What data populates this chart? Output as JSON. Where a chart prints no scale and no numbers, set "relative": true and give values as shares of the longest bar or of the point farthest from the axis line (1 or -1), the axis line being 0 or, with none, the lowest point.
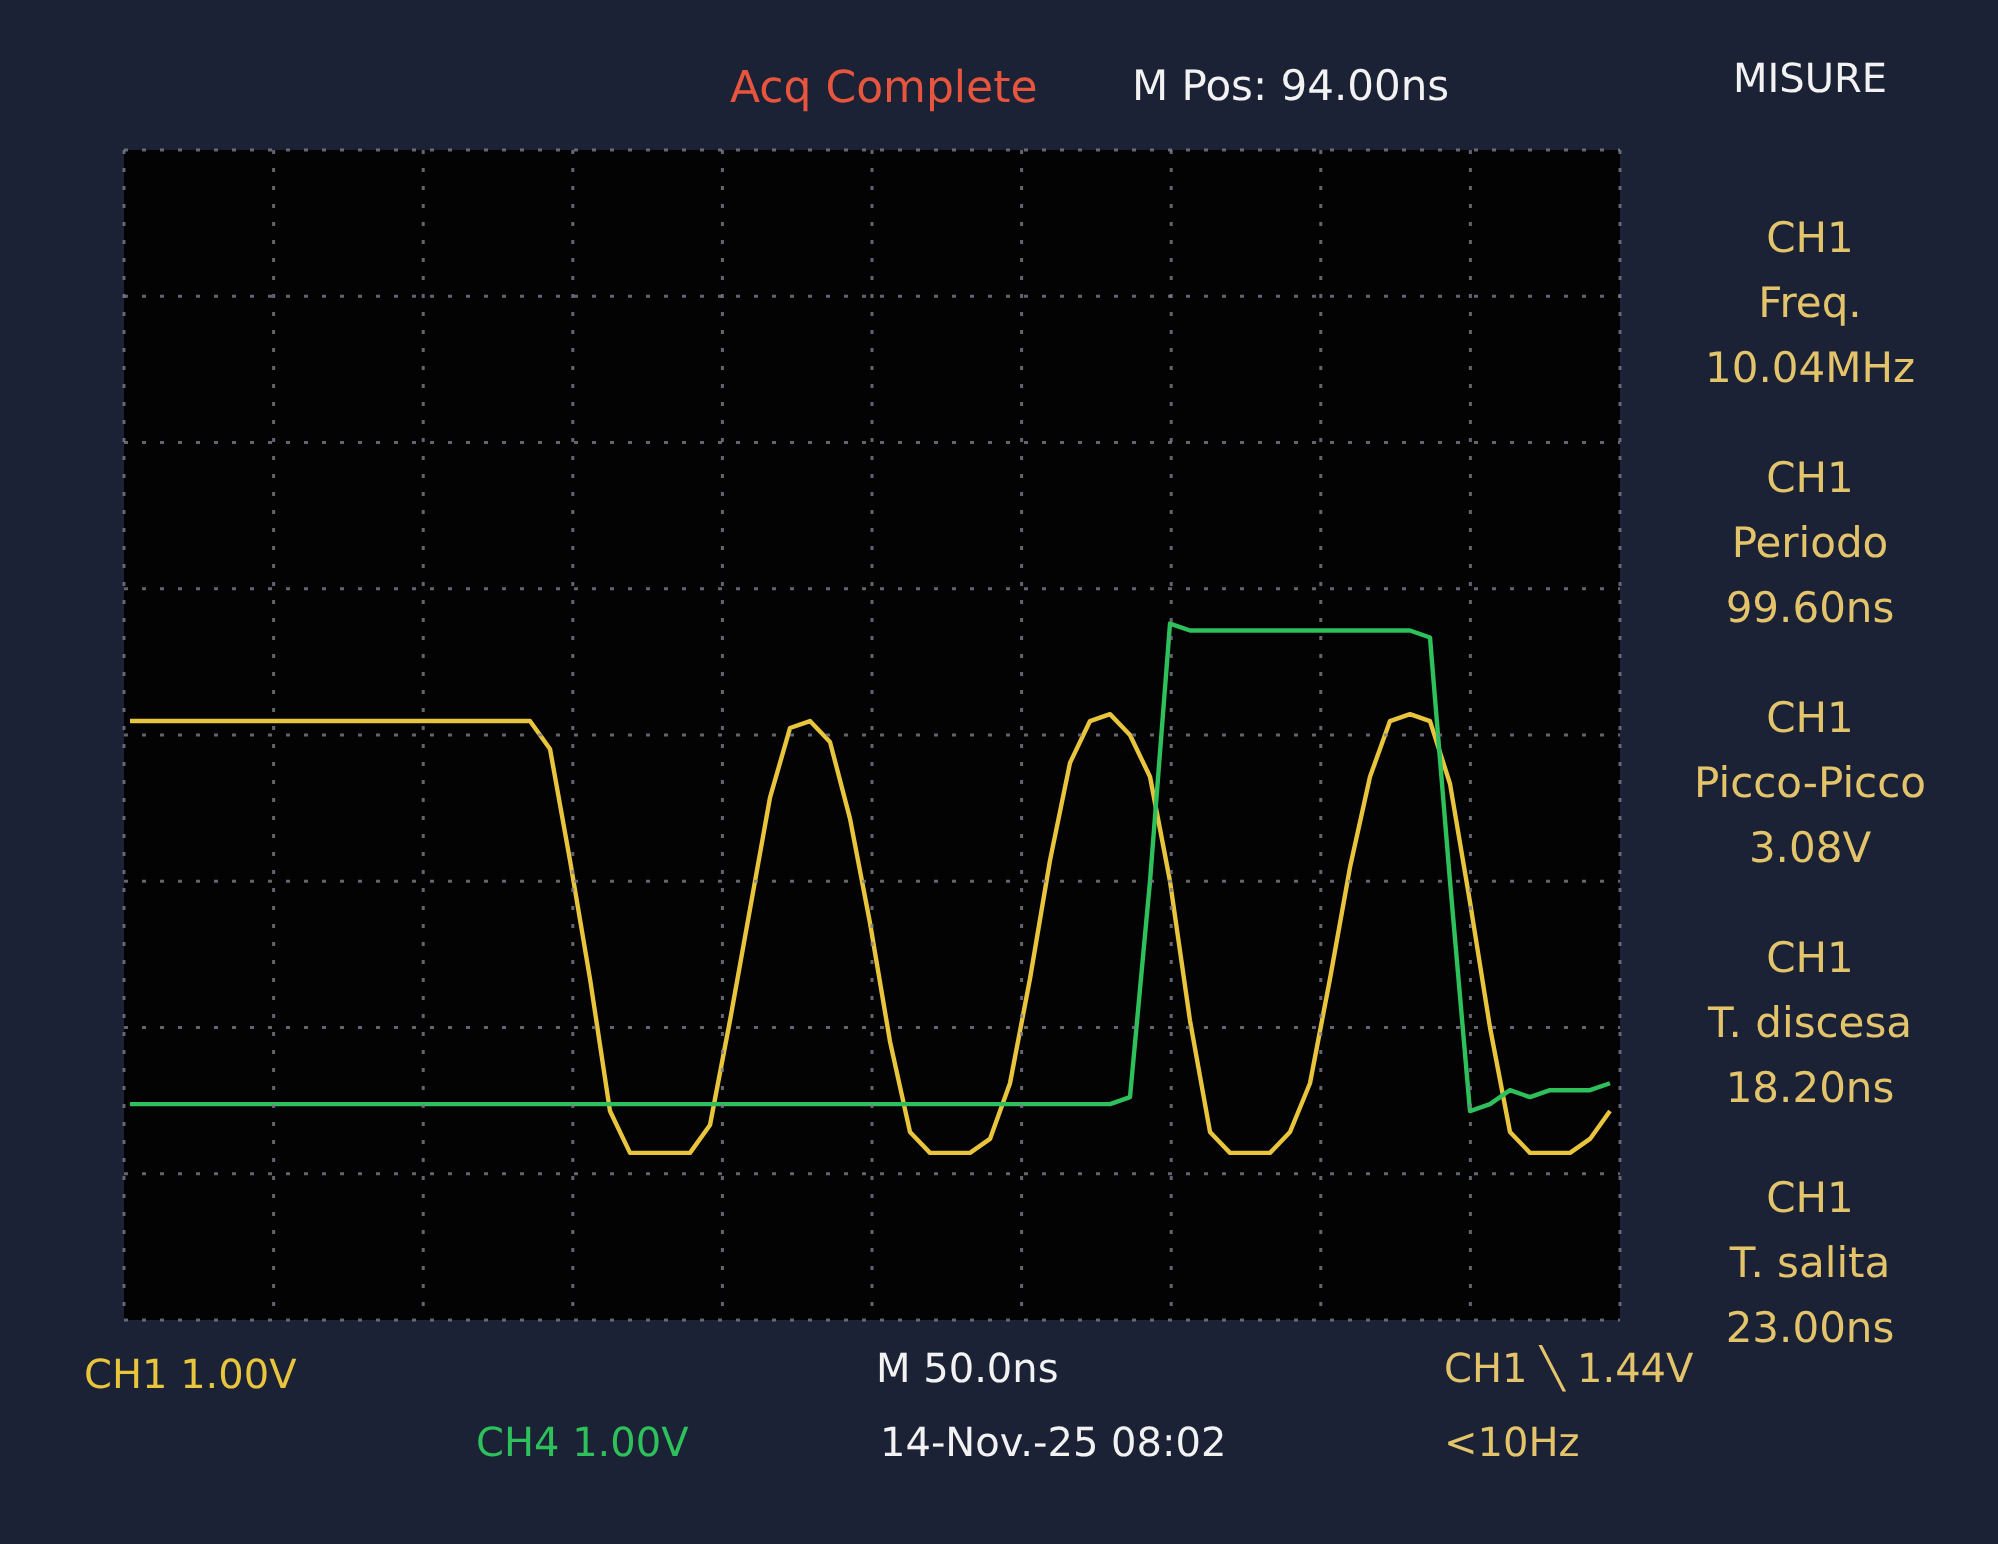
{
  "chart_data": {
    "type": "line",
    "relative": true,
    "grid": true,
    "legend": false,
    "marker": "none",
    "line_style": "solid",
    "title": "Acq Complete",
    "subtitle": "M Pos: 94.00ns",
    "xlabel": "M 50.0ns",
    "categories": [
      null,
      null,
      null,
      null,
      null,
      null,
      null,
      null,
      null,
      null,
      null,
      null,
      null,
      null,
      null,
      null,
      null,
      null,
      null,
      null,
      null,
      null,
      null,
      null,
      null,
      null,
      null,
      null,
      null,
      null,
      null,
      null,
      null,
      null,
      null,
      null,
      null,
      null,
      null,
      null,
      null,
      null,
      null,
      null,
      null,
      null,
      null,
      null,
      null,
      null,
      null,
      null,
      null,
      null,
      null,
      null,
      null,
      null,
      null,
      null,
      null,
      null,
      null,
      null,
      null,
      null,
      null,
      null,
      null,
      null,
      null,
      null,
      null,
      null,
      null
    ],
    "series": [
      {
        "name": "CH1 1.00V",
        "color": "#e8c53c",
        "values": [
          0.86,
          0.86,
          0.86,
          0.86,
          0.86,
          0.86,
          0.86,
          0.86,
          0.86,
          0.86,
          0.86,
          0.86,
          0.86,
          0.86,
          0.86,
          0.86,
          0.86,
          0.86,
          0.86,
          0.86,
          0.86,
          0.82,
          0.66,
          0.49,
          0.3,
          0.24,
          0.24,
          0.24,
          0.24,
          0.28,
          0.43,
          0.59,
          0.75,
          0.85,
          0.86,
          0.83,
          0.72,
          0.57,
          0.4,
          0.27,
          0.24,
          0.24,
          0.24,
          0.26,
          0.34,
          0.49,
          0.66,
          0.8,
          0.86,
          0.87,
          0.84,
          0.78,
          0.63,
          0.43,
          0.27,
          0.24,
          0.24,
          0.24,
          0.27,
          0.34,
          0.49,
          0.65,
          0.78,
          0.86,
          0.87,
          0.86,
          0.77,
          0.6,
          0.42,
          0.27,
          0.24,
          0.24,
          0.24,
          0.26,
          0.3
        ]
      },
      {
        "name": "CH4 1.00V",
        "color": "#2ec05a",
        "values": [
          0.31,
          0.31,
          0.31,
          0.31,
          0.31,
          0.31,
          0.31,
          0.31,
          0.31,
          0.31,
          0.31,
          0.31,
          0.31,
          0.31,
          0.31,
          0.31,
          0.31,
          0.31,
          0.31,
          0.31,
          0.31,
          0.31,
          0.31,
          0.31,
          0.31,
          0.31,
          0.31,
          0.31,
          0.31,
          0.31,
          0.31,
          0.31,
          0.31,
          0.31,
          0.31,
          0.31,
          0.31,
          0.31,
          0.31,
          0.31,
          0.31,
          0.31,
          0.31,
          0.31,
          0.31,
          0.31,
          0.31,
          0.31,
          0.31,
          0.31,
          0.32,
          0.63,
          1.0,
          0.99,
          0.99,
          0.99,
          0.99,
          0.99,
          0.99,
          0.99,
          0.99,
          0.99,
          0.99,
          0.99,
          0.99,
          0.98,
          0.63,
          0.3,
          0.31,
          0.33,
          0.32,
          0.33,
          0.33,
          0.33,
          0.34
        ]
      }
    ],
    "annotations": [
      "MISURE",
      "CH1\nFreq.\n10.04MHz",
      "CH1\nPeriodo\n99.60ns",
      "CH1\nPicco-Picco\n3.08V",
      "CH1\nT. discesa\n18.20ns",
      "CH1\nT. salita\n23.00ns",
      "CH1 ╲ 1.44V",
      "14-Nov.-25 08:02",
      "<10Hz"
    ]
  }
}
